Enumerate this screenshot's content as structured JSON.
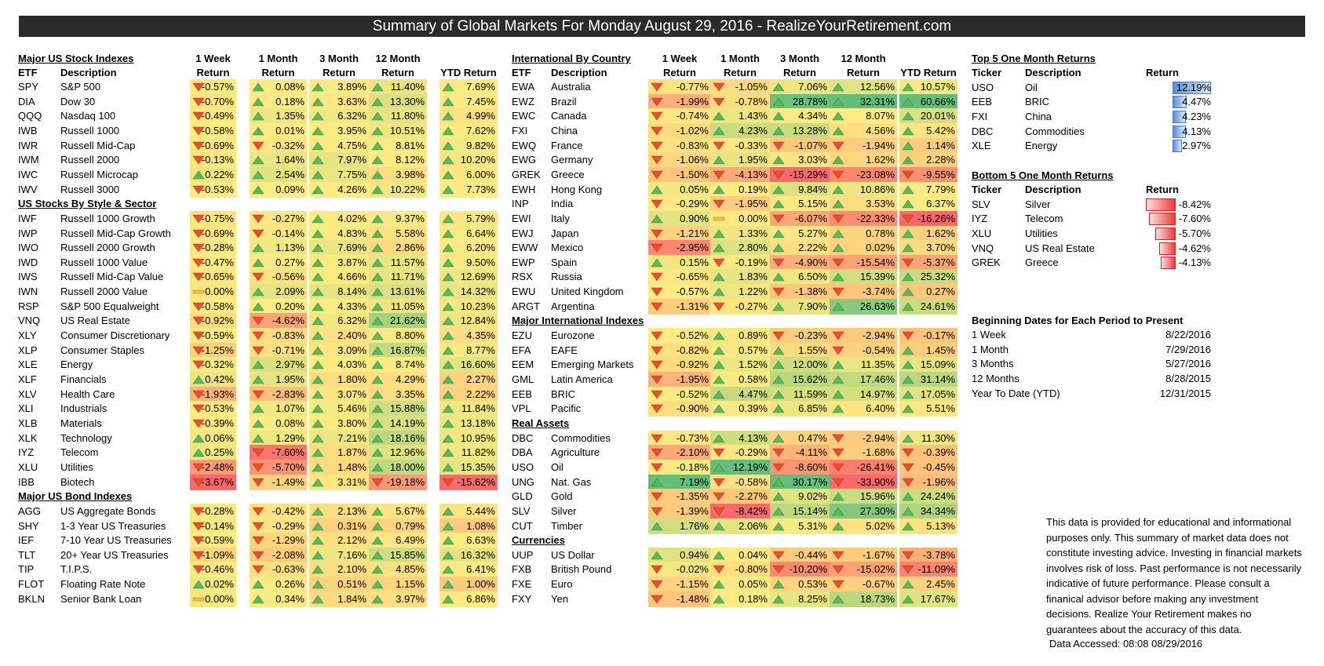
{
  "title": "Summary of Global Markets For Monday August 29, 2016 - RealizeYourRetirement.com",
  "headers": {
    "etf": "ETF",
    "description": "Description",
    "ticker": "Ticker",
    "return": "Return",
    "week_top": "1 Week",
    "month_top": "1 Month",
    "m3_top": "3 Month",
    "m12_top": "12 Month",
    "ytd": "YTD Return"
  },
  "sections": [
    {
      "id": "major-us-stock",
      "title": "Major US Stock Indexes",
      "col": 0,
      "start": 0,
      "rows": [
        [
          "SPY",
          "S&P 500",
          -0.57,
          0.08,
          3.89,
          11.4,
          7.69
        ],
        [
          "DIA",
          "Dow 30",
          -0.7,
          0.18,
          3.63,
          13.3,
          7.45
        ],
        [
          "QQQ",
          "Nasdaq 100",
          -0.49,
          1.35,
          6.32,
          11.8,
          4.99
        ],
        [
          "IWB",
          "Russell 1000",
          -0.58,
          0.01,
          3.95,
          10.51,
          7.62
        ],
        [
          "IWR",
          "Russell Mid-Cap",
          -0.69,
          -0.32,
          4.75,
          8.81,
          9.82
        ],
        [
          "IWM",
          "Russell 2000",
          -0.13,
          1.64,
          7.97,
          8.12,
          10.2
        ],
        [
          "IWC",
          "Russell Microcap",
          0.22,
          2.54,
          7.75,
          3.98,
          6.0
        ],
        [
          "IWV",
          "Russell 3000",
          -0.53,
          0.09,
          4.26,
          10.22,
          7.73
        ]
      ]
    },
    {
      "id": "us-style-sector",
      "title": "US Stocks By Style & Sector",
      "col": 0,
      "start": 9,
      "rows": [
        [
          "IWF",
          "Russell 1000 Growth",
          -0.75,
          -0.27,
          4.02,
          9.37,
          5.79
        ],
        [
          "IWP",
          "Russell Mid-Cap Growth",
          -0.69,
          -0.14,
          4.83,
          5.58,
          6.64
        ],
        [
          "IWO",
          "Russell 2000 Growth",
          -0.28,
          1.13,
          7.69,
          2.86,
          6.2
        ],
        [
          "IWD",
          "Russell 1000 Value",
          -0.47,
          0.27,
          3.87,
          11.57,
          9.5
        ],
        [
          "IWS",
          "Russell Mid-Cap Value",
          -0.65,
          -0.56,
          4.66,
          11.71,
          12.69
        ],
        [
          "IWN",
          "Russell 2000 Value",
          0.0,
          2.09,
          8.14,
          13.61,
          14.32
        ],
        [
          "RSP",
          "S&P 500 Equalweight",
          -0.58,
          0.2,
          4.33,
          11.05,
          10.23
        ],
        [
          "VNQ",
          "US Real Estate",
          -0.92,
          -4.62,
          6.32,
          21.62,
          12.84
        ],
        [
          "XLY",
          "Consumer Discretionary",
          -0.59,
          -0.83,
          2.4,
          8.8,
          4.35
        ],
        [
          "XLP",
          "Consumer Staples",
          -1.25,
          -0.71,
          3.09,
          16.87,
          8.77
        ],
        [
          "XLE",
          "Energy",
          -0.32,
          2.97,
          4.03,
          8.74,
          16.6
        ],
        [
          "XLF",
          "Financials",
          0.42,
          1.95,
          1.8,
          4.29,
          2.27
        ],
        [
          "XLV",
          "Health Care",
          -1.93,
          -2.83,
          3.07,
          3.35,
          2.22
        ],
        [
          "XLI",
          "Industrials",
          -0.53,
          1.07,
          5.46,
          15.88,
          11.84
        ],
        [
          "XLB",
          "Materials",
          -0.39,
          0.08,
          3.8,
          14.19,
          13.18
        ],
        [
          "XLK",
          "Technology",
          0.06,
          1.29,
          7.21,
          18.16,
          10.95
        ],
        [
          "IYZ",
          "Telecom",
          0.25,
          -7.6,
          1.87,
          12.96,
          11.82
        ],
        [
          "XLU",
          "Utilities",
          -2.48,
          -5.7,
          1.48,
          18.0,
          15.35
        ],
        [
          "IBB",
          "Biotech",
          -3.67,
          -1.49,
          3.31,
          -19.18,
          -15.62
        ]
      ]
    },
    {
      "id": "major-us-bond",
      "title": "Major US Bond Indexes",
      "col": 0,
      "start": 29,
      "rows": [
        [
          "AGG",
          "US Aggregate Bonds",
          -0.28,
          -0.42,
          2.13,
          5.67,
          5.44
        ],
        [
          "SHY",
          "1-3 Year US Treasuries",
          -0.14,
          -0.29,
          0.31,
          0.79,
          1.08
        ],
        [
          "IEF",
          "7-10 Year US Treasuries",
          -0.59,
          -1.29,
          2.12,
          6.49,
          6.63
        ],
        [
          "TLT",
          "20+ Year US Treasuries",
          -1.09,
          -2.08,
          7.16,
          15.85,
          16.32
        ],
        [
          "TIP",
          "T.I.P.S.",
          -0.46,
          -0.63,
          2.1,
          4.85,
          6.41
        ],
        [
          "FLOT",
          "Floating Rate Note",
          0.02,
          0.26,
          0.51,
          1.15,
          1.0
        ],
        [
          "BKLN",
          "Senior Bank Loan",
          0.0,
          0.34,
          1.84,
          3.97,
          6.86
        ]
      ]
    },
    {
      "id": "intl-country",
      "title": "International By Country",
      "col": 1,
      "start": 0,
      "rows": [
        [
          "EWA",
          "Australia",
          -0.77,
          -1.05,
          7.06,
          12.56,
          10.57
        ],
        [
          "EWZ",
          "Brazil",
          -1.99,
          -0.78,
          28.78,
          32.31,
          60.66
        ],
        [
          "EWC",
          "Canada",
          -0.74,
          1.43,
          4.34,
          8.07,
          20.01
        ],
        [
          "FXI",
          "China",
          -1.02,
          4.23,
          13.28,
          4.56,
          5.42
        ],
        [
          "EWQ",
          "France",
          -0.83,
          -0.33,
          -1.07,
          -1.94,
          1.14
        ],
        [
          "EWG",
          "Germany",
          -1.06,
          1.95,
          3.03,
          1.62,
          2.28
        ],
        [
          "GREK",
          "Greece",
          -1.5,
          -4.13,
          -15.29,
          -23.08,
          -9.55
        ],
        [
          "EWH",
          "Hong Kong",
          0.05,
          0.19,
          9.84,
          10.86,
          7.79
        ],
        [
          "INP",
          "India",
          -0.29,
          -1.95,
          5.15,
          3.53,
          6.37
        ],
        [
          "EWI",
          "Italy",
          0.9,
          0.0,
          -6.07,
          -22.33,
          -16.26
        ],
        [
          "EWJ",
          "Japan",
          -1.21,
          1.33,
          5.27,
          0.78,
          1.62
        ],
        [
          "EWW",
          "Mexico",
          -2.95,
          2.8,
          2.22,
          0.02,
          3.7
        ],
        [
          "EWP",
          "Spain",
          0.15,
          -0.19,
          -4.9,
          -15.54,
          -5.37
        ],
        [
          "RSX",
          "Russia",
          -0.65,
          1.83,
          6.5,
          15.39,
          25.32
        ],
        [
          "EWU",
          "United Kingdom",
          -0.57,
          1.22,
          -1.38,
          -3.74,
          0.27
        ],
        [
          "ARGT",
          "Argentina",
          -1.31,
          -0.27,
          7.9,
          26.63,
          24.61
        ]
      ]
    },
    {
      "id": "major-intl",
      "title": "Major International Indexes",
      "col": 1,
      "start": 17,
      "rows": [
        [
          "EZU",
          "Eurozone",
          -0.52,
          0.89,
          -0.23,
          -2.94,
          -0.17
        ],
        [
          "EFA",
          "EAFE",
          -0.82,
          0.57,
          1.55,
          -0.54,
          1.45
        ],
        [
          "EEM",
          "Emerging Markets",
          -0.92,
          1.52,
          12.0,
          11.35,
          15.09
        ],
        [
          "GML",
          "Latin America",
          -1.95,
          0.58,
          15.62,
          17.46,
          31.14
        ],
        [
          "EEB",
          "BRIC",
          -0.52,
          4.47,
          11.59,
          14.97,
          17.05
        ],
        [
          "VPL",
          "Pacific",
          -0.9,
          0.39,
          6.85,
          6.4,
          5.51
        ]
      ]
    },
    {
      "id": "real-assets",
      "title": "Real Assets",
      "col": 1,
      "start": 24,
      "rows": [
        [
          "DBC",
          "Commodities",
          -0.73,
          4.13,
          0.47,
          -2.94,
          11.3
        ],
        [
          "DBA",
          "Agriculture",
          -2.1,
          -0.29,
          -4.11,
          -1.68,
          -0.39
        ],
        [
          "USO",
          "Oil",
          -0.18,
          12.19,
          -8.6,
          -26.41,
          -0.45
        ],
        [
          "UNG",
          "Nat. Gas",
          7.19,
          -0.58,
          30.17,
          -33.9,
          -1.96
        ],
        [
          "GLD",
          "Gold",
          -1.35,
          -2.27,
          9.02,
          15.96,
          24.24
        ],
        [
          "SLV",
          "Silver",
          -1.39,
          -8.42,
          15.14,
          27.3,
          34.34
        ],
        [
          "CUT",
          "Timber",
          1.76,
          2.06,
          5.31,
          5.02,
          5.13
        ]
      ]
    },
    {
      "id": "currencies",
      "title": "Currencies",
      "col": 1,
      "start": 32,
      "rows": [
        [
          "UUP",
          "US Dollar",
          0.94,
          0.04,
          -0.44,
          -1.67,
          -3.78
        ],
        [
          "FXB",
          "British Pound",
          -0.02,
          -0.8,
          -10.2,
          -15.02,
          -11.09
        ],
        [
          "FXE",
          "Euro",
          -1.15,
          0.05,
          0.53,
          -0.67,
          2.45
        ],
        [
          "FXY",
          "Yen",
          -1.48,
          0.18,
          8.25,
          18.73,
          17.67
        ]
      ]
    }
  ],
  "top5": {
    "title": "Top 5 One Month Returns",
    "rows": [
      [
        "USO",
        "Oil",
        12.19
      ],
      [
        "EEB",
        "BRIC",
        4.47
      ],
      [
        "FXI",
        "China",
        4.23
      ],
      [
        "DBC",
        "Commodities",
        4.13
      ],
      [
        "XLE",
        "Energy",
        2.97
      ]
    ]
  },
  "bottom5": {
    "title": "Bottom 5 One Month Returns",
    "rows": [
      [
        "SLV",
        "Silver",
        -8.42
      ],
      [
        "IYZ",
        "Telecom",
        -7.6
      ],
      [
        "XLU",
        "Utilities",
        -5.7
      ],
      [
        "VNQ",
        "US Real Estate",
        -4.62
      ],
      [
        "GREK",
        "Greece",
        -4.13
      ]
    ]
  },
  "dates": {
    "title": "Beginning Dates for Each Period to Present",
    "rows": [
      [
        "1 Week",
        "8/22/2016"
      ],
      [
        "1 Month",
        "7/29/2016"
      ],
      [
        "3 Months",
        "5/27/2016"
      ],
      [
        "12 Months",
        "8/28/2015"
      ],
      [
        "Year To Date (YTD)",
        "12/31/2015"
      ]
    ]
  },
  "disclaimer": "This data is provided for educational and informational purposes only. This summary of market data does not constitute investing advice. Investing in financial markets involves risk of loss.  Past performance is not necessarily  indicative of future performance. Please consult a finanical advisor before making any investment decisions. Realize Your Retirement makes no guarantees about the accuracy of this data.",
  "accessed": "Data Accessed: 08:08 08/29/2016",
  "colors": {
    "red": "#f8696b",
    "yellow": "#ffeb84",
    "green": "#63be7b",
    "arrow_up": "#5cb85c",
    "arrow_down": "#e8502f",
    "arrow_flat": "#f5c04a",
    "top_bar": "#5b8fd6",
    "bottom_bar": "#f0393b",
    "title_bg": "#2b2b2b"
  }
}
